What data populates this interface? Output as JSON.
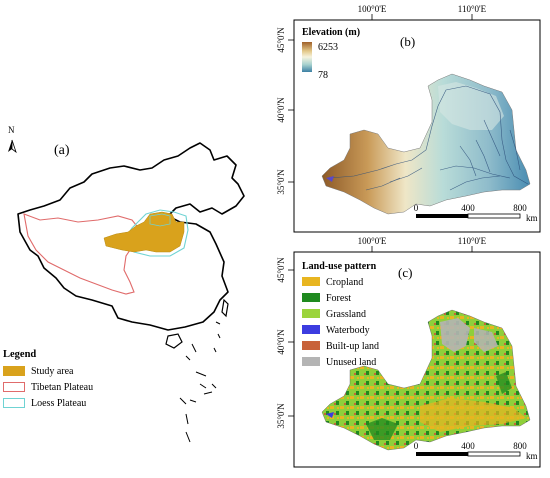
{
  "panel_a": {
    "label": "(a)",
    "north_letter": "N",
    "legend": {
      "title": "Legend",
      "items": [
        {
          "label": "Study area",
          "color": "#d9a21c",
          "kind": "fill"
        },
        {
          "label": "Tibetan Plateau",
          "color": "#e06b6b",
          "kind": "outline"
        },
        {
          "label": "Loess Plateau",
          "color": "#6fd3d3",
          "kind": "outline"
        }
      ]
    }
  },
  "panel_b": {
    "label": "(b)",
    "legend_title": "Elevation (m)",
    "elev_max": "6253",
    "elev_min": "78",
    "ramp_colors": [
      "#a0612a",
      "#e3c889",
      "#f6f3de",
      "#a7d2cf",
      "#3c7fa3"
    ],
    "lon_labels": [
      "100°0'E",
      "110°0'E"
    ],
    "lat_labels": [
      "45°0'N",
      "40°0'N",
      "35°0'N"
    ],
    "scale": {
      "ticks": [
        "0",
        "400",
        "800"
      ],
      "unit": "km"
    }
  },
  "panel_c": {
    "label": "(c)",
    "legend_title": "Land-use pattern",
    "classes": [
      {
        "label": "Cropland",
        "color": "#e8b520"
      },
      {
        "label": "Forest",
        "color": "#1f8a1f"
      },
      {
        "label": "Grassland",
        "color": "#9bd43c"
      },
      {
        "label": "Waterbody",
        "color": "#3c3ce0"
      },
      {
        "label": "Built-up land",
        "color": "#c8623a"
      },
      {
        "label": "Unused land",
        "color": "#b4b4b4"
      }
    ],
    "lon_labels": [
      "100°0'E",
      "110°0'E"
    ],
    "lat_labels": [
      "45°0'N",
      "40°0'N",
      "35°0'N"
    ],
    "scale": {
      "ticks": [
        "0",
        "400",
        "800"
      ],
      "unit": "km"
    }
  }
}
